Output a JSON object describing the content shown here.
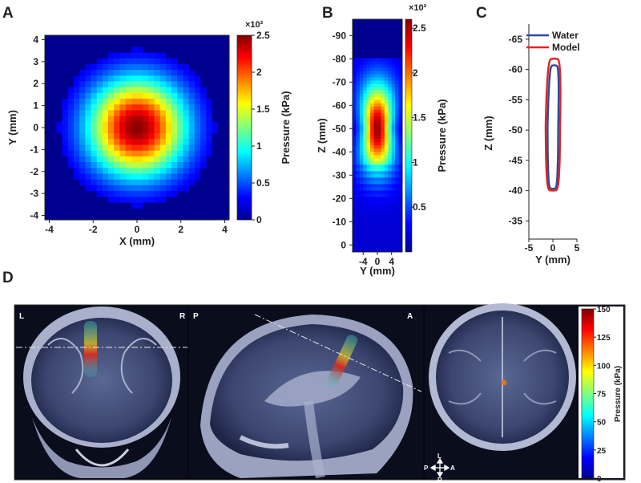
{
  "panels": {
    "a": {
      "letter": "A"
    },
    "b": {
      "letter": "B"
    },
    "c": {
      "letter": "C"
    },
    "d": {
      "letter": "D"
    }
  },
  "chart_data": [
    {
      "panel": "A",
      "type": "heatmap",
      "xlabel": "X (mm)",
      "ylabel": "Y (mm)",
      "xlim": [
        -4.2,
        4.2
      ],
      "ylim": [
        -4.2,
        4.2
      ],
      "xticks": [
        "-4",
        "-2",
        "0",
        "2",
        "4"
      ],
      "yticks": [
        "4",
        "3",
        "2",
        "1",
        "0",
        "-1",
        "-2",
        "-3",
        "-4"
      ],
      "colorbar": {
        "label": "Pressure (kPa)",
        "exponent": "×10²",
        "ticks": [
          "2.5",
          "2",
          "1.5",
          "1",
          "0.5",
          "0"
        ],
        "range": [
          0,
          2.5
        ]
      },
      "peak": 2.5,
      "center": [
        0,
        0
      ]
    },
    {
      "panel": "B",
      "type": "heatmap",
      "xlabel": "Y (mm)",
      "ylabel": "Z (mm)",
      "xticks": [
        "-4",
        "0",
        "4"
      ],
      "yticks": [
        "-90",
        "-80",
        "-70",
        "-60",
        "-50",
        "-40",
        "-30",
        "-20",
        "-10",
        "0"
      ],
      "colorbar": {
        "label": "Pressure (kPa)",
        "exponent": "×10²",
        "ticks": [
          "2.5",
          "2",
          "1.5",
          "1",
          "0.5"
        ],
        "range": [
          0,
          2.6
        ]
      },
      "focus_z": -50
    },
    {
      "panel": "C",
      "type": "line",
      "xlabel": "Y (mm)",
      "ylabel": "Z (mm)",
      "xticks": [
        "-5",
        "0",
        "5"
      ],
      "yticks": [
        "-65",
        "-60",
        "-55",
        "-50",
        "-45",
        "-40",
        "-35"
      ],
      "xlim": [
        -5,
        5
      ],
      "ylim": [
        -67.5,
        -32
      ],
      "series": [
        {
          "name": "Water",
          "color": "#2b4a9a",
          "z_top": -60.7,
          "z_bottom": -40.3,
          "half_width": 1.1
        },
        {
          "name": "Model",
          "color": "#e02424",
          "z_top": -61.8,
          "z_bottom": -40.0,
          "half_width": 1.5
        }
      ]
    },
    {
      "panel": "D",
      "type": "image",
      "views": [
        {
          "name": "coronal",
          "left": "L",
          "right": "R"
        },
        {
          "name": "sagittal",
          "left": "P",
          "right": "A"
        },
        {
          "name": "axial"
        }
      ],
      "compass": {
        "up": "L",
        "down": "R",
        "left": "P",
        "right": "A"
      },
      "colorbar": {
        "label": "Pressure (kPa)",
        "ticks": [
          "150",
          "125",
          "100",
          "75",
          "50",
          "25",
          "0"
        ],
        "range": [
          0,
          150
        ]
      }
    }
  ]
}
